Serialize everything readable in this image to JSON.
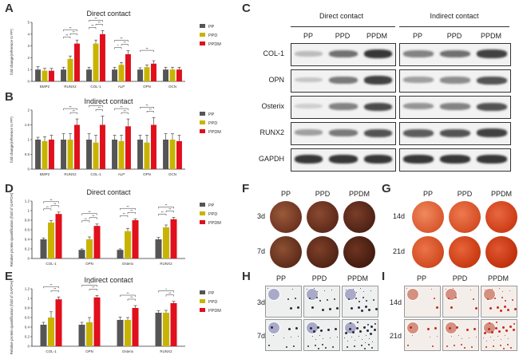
{
  "panel_letters": [
    "A",
    "B",
    "C",
    "D",
    "E",
    "F",
    "G",
    "H",
    "I"
  ],
  "chart_data": [
    {
      "id": "A",
      "type": "bar",
      "title": "Direct contact",
      "ylabel": "fold change(reference to PP)",
      "categories": [
        "BMP2",
        "RUNX2",
        "COL-1",
        "ALP",
        "OPN",
        "OCN"
      ],
      "ylim": [
        0,
        5
      ],
      "yticks": [
        0,
        1,
        2,
        3,
        4,
        5
      ],
      "series": [
        {
          "name": "PP",
          "color": "#555555",
          "values": [
            1.0,
            1.0,
            1.0,
            1.0,
            1.0,
            1.0
          ],
          "errors": [
            0.25,
            0.2,
            0.2,
            0.2,
            0.15,
            0.2
          ]
        },
        {
          "name": "PPD",
          "color": "#c8b400",
          "values": [
            0.9,
            1.9,
            3.2,
            1.4,
            1.2,
            1.0
          ],
          "errors": [
            0.2,
            0.25,
            0.3,
            0.2,
            0.2,
            0.2
          ]
        },
        {
          "name": "PPDM",
          "color": "#e0101c",
          "values": [
            0.9,
            3.2,
            4.0,
            2.3,
            1.5,
            1.0
          ],
          "errors": [
            0.2,
            0.3,
            0.3,
            0.3,
            0.25,
            0.2
          ]
        }
      ],
      "significance": [
        {
          "cat": 1,
          "from": 0,
          "to": 1,
          "text": "**"
        },
        {
          "cat": 1,
          "from": 0,
          "to": 2,
          "text": "**"
        },
        {
          "cat": 1,
          "from": 1,
          "to": 2,
          "text": "**"
        },
        {
          "cat": 2,
          "from": 0,
          "to": 1,
          "text": "**"
        },
        {
          "cat": 2,
          "from": 0,
          "to": 2,
          "text": "**"
        },
        {
          "cat": 2,
          "from": 1,
          "to": 2,
          "text": "**"
        },
        {
          "cat": 3,
          "from": 0,
          "to": 1,
          "text": "*"
        },
        {
          "cat": 3,
          "from": 0,
          "to": 2,
          "text": "**"
        },
        {
          "cat": 3,
          "from": 1,
          "to": 2,
          "text": "**"
        },
        {
          "cat": 4,
          "from": 0,
          "to": 2,
          "text": "**"
        }
      ]
    },
    {
      "id": "B",
      "type": "bar",
      "title": "Indirect contact",
      "ylabel": "fold change(reference to PP)",
      "categories": [
        "BMP2",
        "RUNX2",
        "COL-1",
        "ALP",
        "OPN",
        "OCN"
      ],
      "ylim": [
        0,
        2
      ],
      "yticks": [
        0.0,
        0.5,
        1.0,
        1.5,
        2.0
      ],
      "series": [
        {
          "name": "PP",
          "color": "#555555",
          "values": [
            1.0,
            1.0,
            1.0,
            1.0,
            1.0,
            1.0
          ],
          "errors": [
            0.08,
            0.2,
            0.2,
            0.15,
            0.15,
            0.2
          ]
        },
        {
          "name": "PPD",
          "color": "#c8b400",
          "values": [
            0.95,
            1.0,
            0.9,
            0.95,
            0.9,
            1.0
          ],
          "errors": [
            0.15,
            0.2,
            0.25,
            0.2,
            0.25,
            0.2
          ]
        },
        {
          "name": "PPDM",
          "color": "#e0101c",
          "values": [
            1.0,
            1.5,
            1.5,
            1.45,
            1.5,
            0.95
          ],
          "errors": [
            0.15,
            0.2,
            0.3,
            0.25,
            0.25,
            0.2
          ]
        }
      ],
      "significance": [
        {
          "cat": 1,
          "from": 0,
          "to": 2,
          "text": "**"
        },
        {
          "cat": 1,
          "from": 1,
          "to": 2,
          "text": "**"
        },
        {
          "cat": 2,
          "from": 0,
          "to": 2,
          "text": "**"
        },
        {
          "cat": 2,
          "from": 1,
          "to": 2,
          "text": "**"
        },
        {
          "cat": 3,
          "from": 0,
          "to": 2,
          "text": "**"
        },
        {
          "cat": 3,
          "from": 1,
          "to": 2,
          "text": "**"
        },
        {
          "cat": 4,
          "from": 0,
          "to": 2,
          "text": "**"
        },
        {
          "cat": 4,
          "from": 1,
          "to": 2,
          "text": "**"
        }
      ]
    },
    {
      "id": "D",
      "type": "bar",
      "title": "Direct contact",
      "ylabel": "Relative protein quantification (fold of GAPDH)",
      "categories": [
        "COL-1",
        "OPN",
        "Osterix",
        "RUNX2"
      ],
      "ylim": [
        0,
        1.2
      ],
      "yticks": [
        0.0,
        0.2,
        0.4,
        0.6,
        0.8,
        1.0,
        1.2
      ],
      "series": [
        {
          "name": "PP",
          "color": "#555555",
          "values": [
            0.4,
            0.18,
            0.18,
            0.4
          ],
          "errors": [
            0.03,
            0.02,
            0.02,
            0.04
          ]
        },
        {
          "name": "PPD",
          "color": "#c8b400",
          "values": [
            0.75,
            0.4,
            0.57,
            0.65
          ],
          "errors": [
            0.04,
            0.05,
            0.06,
            0.05
          ]
        },
        {
          "name": "PPDM",
          "color": "#e0101c",
          "values": [
            0.93,
            0.68,
            0.8,
            0.82
          ],
          "errors": [
            0.04,
            0.04,
            0.03,
            0.04
          ]
        }
      ],
      "significance": [
        {
          "cat": 0,
          "from": 0,
          "to": 1,
          "text": "**"
        },
        {
          "cat": 0,
          "from": 0,
          "to": 2,
          "text": "**"
        },
        {
          "cat": 0,
          "from": 1,
          "to": 2,
          "text": "**"
        },
        {
          "cat": 1,
          "from": 0,
          "to": 1,
          "text": "**"
        },
        {
          "cat": 1,
          "from": 0,
          "to": 2,
          "text": "**"
        },
        {
          "cat": 1,
          "from": 1,
          "to": 2,
          "text": "**"
        },
        {
          "cat": 2,
          "from": 0,
          "to": 1,
          "text": "**"
        },
        {
          "cat": 2,
          "from": 0,
          "to": 2,
          "text": "**"
        },
        {
          "cat": 2,
          "from": 1,
          "to": 2,
          "text": "**"
        },
        {
          "cat": 3,
          "from": 0,
          "to": 1,
          "text": "**"
        },
        {
          "cat": 3,
          "from": 0,
          "to": 2,
          "text": "**"
        },
        {
          "cat": 3,
          "from": 1,
          "to": 2,
          "text": "**"
        }
      ]
    },
    {
      "id": "E",
      "type": "bar",
      "title": "Indirect contact",
      "ylabel": "Relative protein quantification (fold of GAPDH)",
      "categories": [
        "COL-1",
        "OPN",
        "Osterix",
        "RUNX2"
      ],
      "ylim": [
        0,
        1.2
      ],
      "yticks": [
        0.0,
        0.2,
        0.4,
        0.6,
        0.8,
        1.0,
        1.2
      ],
      "series": [
        {
          "name": "PP",
          "color": "#555555",
          "values": [
            0.45,
            0.45,
            0.55,
            0.7
          ],
          "errors": [
            0.05,
            0.05,
            0.06,
            0.04
          ]
        },
        {
          "name": "PPD",
          "color": "#c8b400",
          "values": [
            0.6,
            0.5,
            0.55,
            0.7
          ],
          "errors": [
            0.12,
            0.1,
            0.05,
            0.05
          ]
        },
        {
          "name": "PPDM",
          "color": "#e0101c",
          "values": [
            0.98,
            1.02,
            0.8,
            0.9
          ],
          "errors": [
            0.05,
            0.04,
            0.05,
            0.04
          ]
        }
      ],
      "significance": [
        {
          "cat": 0,
          "from": 0,
          "to": 2,
          "text": "**"
        },
        {
          "cat": 0,
          "from": 1,
          "to": 2,
          "text": "**"
        },
        {
          "cat": 1,
          "from": 0,
          "to": 2,
          "text": "**"
        },
        {
          "cat": 1,
          "from": 1,
          "to": 2,
          "text": "**"
        },
        {
          "cat": 2,
          "from": 0,
          "to": 2,
          "text": "**"
        },
        {
          "cat": 2,
          "from": 1,
          "to": 2,
          "text": "**"
        },
        {
          "cat": 3,
          "from": 0,
          "to": 2,
          "text": "*"
        },
        {
          "cat": 3,
          "from": 1,
          "to": 2,
          "text": "**"
        }
      ]
    }
  ],
  "blot": {
    "direct_label": "Direct contact",
    "indirect_label": "Indirect contact",
    "columns": [
      "PP",
      "PPD",
      "PPDM"
    ],
    "rows": [
      "COL-1",
      "OPN",
      "Osterix",
      "RUNX2",
      "GAPDH"
    ],
    "direct_intensity": [
      [
        0.15,
        0.55,
        0.85
      ],
      [
        0.1,
        0.5,
        0.8
      ],
      [
        0.05,
        0.45,
        0.75
      ],
      [
        0.3,
        0.5,
        0.7
      ],
      [
        0.85,
        0.85,
        0.85
      ]
    ],
    "indirect_intensity": [
      [
        0.45,
        0.55,
        0.8
      ],
      [
        0.3,
        0.4,
        0.7
      ],
      [
        0.35,
        0.45,
        0.7
      ],
      [
        0.65,
        0.7,
        0.8
      ],
      [
        0.85,
        0.85,
        0.85
      ]
    ]
  },
  "alp_direct": {
    "columns": [
      "PP",
      "PPD",
      "PPDM"
    ],
    "rows": [
      "3d",
      "7d"
    ],
    "color": "#7a3b22"
  },
  "ars_direct": {
    "columns": [
      "PP",
      "PPD",
      "PPDM"
    ],
    "rows": [
      "14d",
      "21d"
    ],
    "color": "#d9502a"
  },
  "alp_micro": {
    "columns": [
      "PP",
      "PPD",
      "PPDM"
    ],
    "rows": [
      "3d",
      "7d"
    ]
  },
  "ars_micro": {
    "columns": [
      "PP",
      "PPD",
      "PPDM"
    ],
    "rows": [
      "14d",
      "21d"
    ]
  }
}
